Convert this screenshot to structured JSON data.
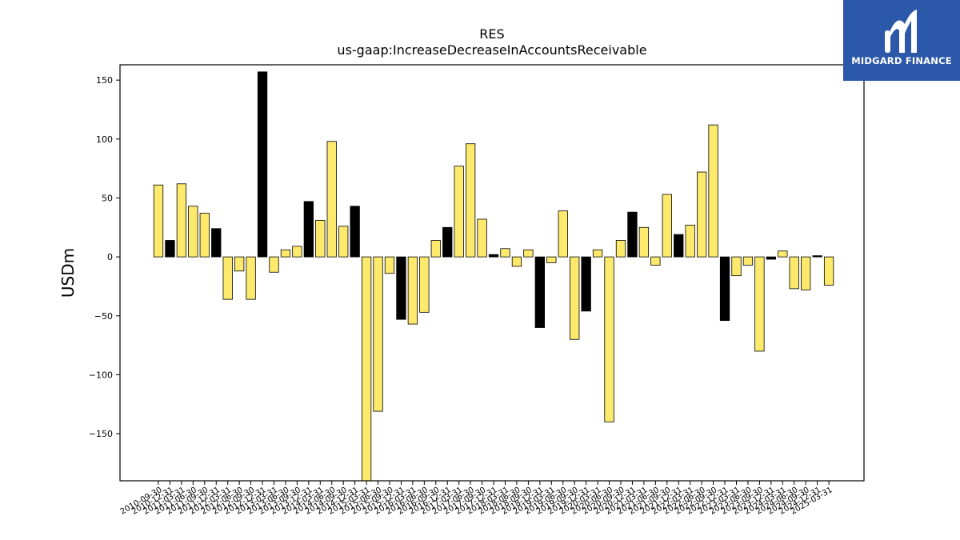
{
  "brand": {
    "name": "MIDGARD FINANCE",
    "icon": "midgard-logo-icon",
    "color": "#2b58a8"
  },
  "chart_data": {
    "type": "bar",
    "title": "RES",
    "subtitle": "us-gaap:IncreaseDecreaseInAccountsReceivable",
    "ylabel": "USDm",
    "xlabel": "",
    "ylim": [
      -190,
      163
    ],
    "yticks": [
      -150,
      -100,
      -50,
      0,
      50,
      100,
      150
    ],
    "grid": false,
    "legend": "none",
    "colors": {
      "quarterly": "#fde96c",
      "annual": "#000000",
      "edge": "#000000"
    },
    "categories": [
      "2010-09-30",
      "2010-12-31",
      "2011-03-31",
      "2011-06-30",
      "2011-09-30",
      "2011-12-31",
      "2012-03-31",
      "2012-06-30",
      "2012-09-30",
      "2012-12-31",
      "2013-03-31",
      "2013-06-30",
      "2013-09-30",
      "2013-12-31",
      "2014-03-31",
      "2014-06-30",
      "2014-09-30",
      "2014-12-31",
      "2015-03-31",
      "2015-06-30",
      "2015-09-30",
      "2015-12-31",
      "2016-03-31",
      "2016-06-30",
      "2016-09-30",
      "2016-12-31",
      "2017-03-31",
      "2017-06-30",
      "2017-09-30",
      "2017-12-31",
      "2018-03-31",
      "2018-06-30",
      "2018-09-30",
      "2018-12-31",
      "2019-03-31",
      "2019-06-30",
      "2019-09-30",
      "2019-12-31",
      "2020-03-31",
      "2020-06-30",
      "2020-09-30",
      "2020-12-31",
      "2021-03-31",
      "2021-06-30",
      "2021-09-30",
      "2021-12-31",
      "2022-03-31",
      "2022-06-30",
      "2022-09-30",
      "2022-12-31",
      "2023-03-31",
      "2023-06-30",
      "2023-09-30",
      "2023-12-31",
      "2024-03-31",
      "2024-06-30",
      "2024-09-30",
      "2024-12-31",
      "2025-03-31"
    ],
    "values": [
      61,
      14,
      62,
      43,
      37,
      24,
      -36,
      -12,
      -36,
      157,
      -13,
      6,
      9,
      47,
      31,
      98,
      26,
      43,
      -190,
      -131,
      -14,
      -53,
      -57,
      -47,
      14,
      25,
      77,
      96,
      32,
      2,
      7,
      -8,
      6,
      -60,
      -5,
      39,
      -70,
      -46,
      6,
      -140,
      14,
      38,
      25,
      -7,
      53,
      19,
      27,
      72,
      112,
      -54,
      -16,
      -7,
      -80,
      -2,
      5,
      -27,
      -28,
      1,
      -24
    ],
    "annual": [
      false,
      true,
      false,
      false,
      false,
      true,
      false,
      false,
      false,
      true,
      false,
      false,
      false,
      true,
      false,
      false,
      false,
      true,
      false,
      false,
      false,
      true,
      false,
      false,
      false,
      true,
      false,
      false,
      false,
      true,
      false,
      false,
      false,
      true,
      false,
      false,
      false,
      true,
      false,
      false,
      false,
      true,
      false,
      false,
      false,
      true,
      false,
      false,
      false,
      true,
      false,
      false,
      false,
      true,
      false,
      false,
      false,
      true,
      false
    ]
  }
}
